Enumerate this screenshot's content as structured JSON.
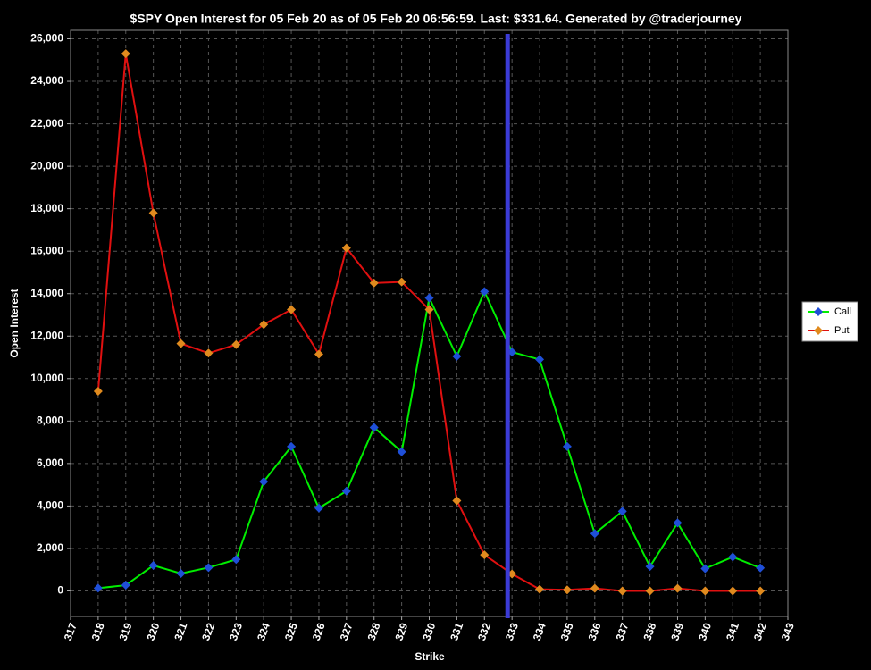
{
  "chart_data": {
    "type": "line",
    "title": "$SPY Open Interest for 05 Feb 20 as of 05 Feb 20 06:56:59.  Last: $331.64.  Generated by @traderjourney",
    "x_label": "Strike",
    "y_label": "Open Interest",
    "x": [
      318,
      319,
      320,
      321,
      322,
      323,
      324,
      325,
      326,
      327,
      328,
      329,
      330,
      331,
      332,
      333,
      334,
      335,
      336,
      337,
      338,
      339,
      340,
      341,
      342
    ],
    "series": [
      {
        "name": "Call",
        "color": "#00ee00",
        "marker_color": "#1f4fd8",
        "values": [
          130,
          270,
          1200,
          820,
          1100,
          1480,
          5150,
          6800,
          3900,
          4700,
          7700,
          6550,
          13800,
          11050,
          14100,
          11250,
          10900,
          6800,
          2700,
          3750,
          1150,
          3200,
          1050,
          1600,
          1080
        ]
      },
      {
        "name": "Put",
        "color": "#e01010",
        "marker_color": "#e08a1e",
        "values": [
          9400,
          25300,
          17800,
          11650,
          11200,
          11600,
          12550,
          13250,
          11150,
          16150,
          14500,
          14550,
          13250,
          4250,
          1700,
          800,
          80,
          50,
          120,
          0,
          0,
          120,
          0,
          0,
          0
        ]
      }
    ],
    "marker_line": {
      "x": 332.84,
      "color": "#3b3bd6"
    },
    "xlim": [
      317,
      343
    ],
    "xticks": [
      317,
      318,
      319,
      320,
      321,
      322,
      323,
      324,
      325,
      326,
      327,
      328,
      329,
      330,
      331,
      332,
      333,
      334,
      335,
      336,
      337,
      338,
      339,
      340,
      341,
      342,
      343
    ],
    "ylim": [
      -1200,
      26400
    ],
    "yticks": [
      0,
      {
        "value": 2000,
        "label": "2,000"
      },
      {
        "value": 4000,
        "label": "4,000"
      },
      {
        "value": 6000,
        "label": "6,000"
      },
      {
        "value": 8000,
        "label": "8,000"
      },
      {
        "value": 10000,
        "label": "10,000"
      },
      {
        "value": 12000,
        "label": "12,000"
      },
      {
        "value": 14000,
        "label": "14,000"
      },
      {
        "value": 16000,
        "label": "16,000"
      },
      {
        "value": 18000,
        "label": "18,000"
      },
      {
        "value": 20000,
        "label": "20,000"
      },
      {
        "value": 22000,
        "label": "22,000"
      },
      {
        "value": 24000,
        "label": "24,000"
      },
      {
        "value": 26000,
        "label": "26,000"
      }
    ],
    "grid": true,
    "legend": "right"
  }
}
